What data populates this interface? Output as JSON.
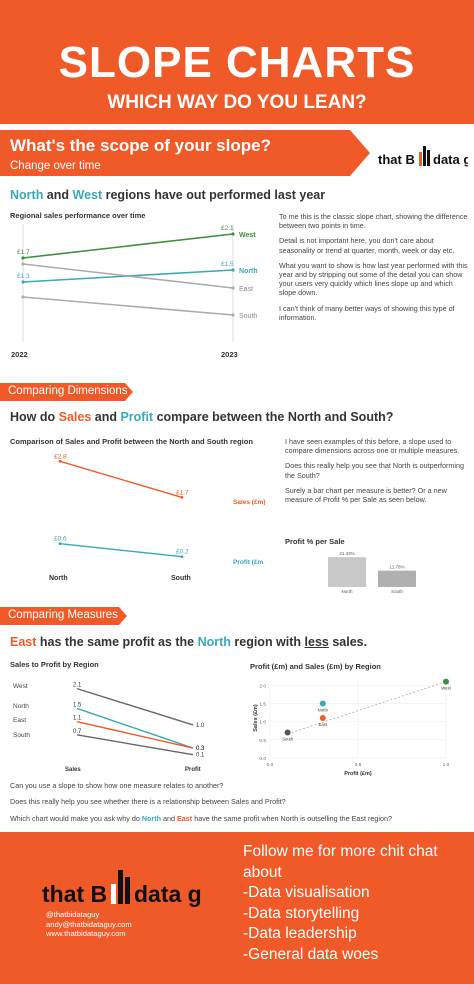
{
  "hero": {
    "title": "SLOPE CHARTS",
    "subtitle": "WHICH WAY DO YOU LEAN?"
  },
  "banner": {
    "title": "What's the scope of your slope?",
    "subtitle": "Change over time"
  },
  "logo": {
    "part1": "that B",
    "part2": "data guy"
  },
  "section1": {
    "heading_a": "North",
    "heading_and": " and ",
    "heading_b": "West",
    "heading_rest": " regions have out performed last year",
    "paragraphs": [
      "To me this is the classic slope chart, showing the difference between two points in time.",
      "Detail is not important here, you don't care about seasonality or trend at quarter, month, week or day etc.",
      "What you want to show is how last year performed with this year and by stripping out some of the detail you can show your users very quickly which lines slope up and which slope down.",
      "I can't think of many better ways of showing this type of information."
    ]
  },
  "section2": {
    "label": "Comparing Dimensions",
    "heading_a": "How do ",
    "heading_sales": "Sales",
    "heading_and": " and ",
    "heading_profit": "Profit",
    "heading_rest": " compare between the North and South?",
    "paragraphs": [
      "I have seen examples of this before, a slope used to compare dimensions across one or multiple measures.",
      "Does this really help you see that North is outperforming the South?",
      "Surely a bar chart per measure is better? Or a new measure of Profit % per Sale as seen below."
    ]
  },
  "section3": {
    "label": "Comparing Measures",
    "heading_east": "East",
    "heading_a": " has the same profit as the ",
    "heading_north": "North",
    "heading_b": " region with ",
    "heading_less": "less",
    "heading_c": " sales.",
    "q1": "Can you use a slope to show how one measure relates to another?",
    "q2": "Does this really help you see whether there is a relationship between Sales and Profit?",
    "q3_a": "Which chart would make you ask why do ",
    "q3_north": "North",
    "q3_and": " and ",
    "q3_east": "East",
    "q3_rest": " have the same profit when North is outselling the East region?"
  },
  "footer": {
    "lines": [
      "Follow me for more chit chat",
      "about",
      "-Data visualisation",
      "-Data storytelling",
      "-Data leadership",
      "-General data woes"
    ],
    "contact": [
      "@thatbidataguy",
      "andy@thatbidataguy.com",
      "www.thatbidataguy.com"
    ]
  },
  "colors": {
    "orange": "#f05a28",
    "teal": "#3aa8b5",
    "green": "#3d8f3d",
    "grey": "#aaaaaa"
  },
  "chart_data": [
    {
      "type": "line",
      "title": "Regional sales performance over time",
      "categories": [
        "2022",
        "2023"
      ],
      "ylim": [
        0.5,
        2.2
      ],
      "series": [
        {
          "name": "West",
          "values": [
            1.7,
            2.1
          ],
          "labels": [
            "£1.7",
            "£2.1"
          ],
          "color": "#3d8f3d"
        },
        {
          "name": "North",
          "values": [
            1.3,
            1.5
          ],
          "labels": [
            "£1.3",
            "£1.5"
          ],
          "color": "#3aa8b5"
        },
        {
          "name": "East",
          "values": [
            1.6,
            1.2
          ],
          "labels": [
            "",
            ""
          ],
          "color": "#aaaaaa"
        },
        {
          "name": "South",
          "values": [
            1.05,
            0.75
          ],
          "labels": [
            "",
            ""
          ],
          "color": "#aaaaaa"
        }
      ]
    },
    {
      "type": "line",
      "title": "Comparison of Sales and Profit between the North and South region",
      "categories": [
        "North",
        "South"
      ],
      "series": [
        {
          "name": "Sales (£m)",
          "values": [
            2.8,
            1.7
          ],
          "labels": [
            "£2.8",
            "£1.7"
          ],
          "color": "#f05a28"
        },
        {
          "name": "Profit (£m",
          "values": [
            0.6,
            0.2
          ],
          "labels": [
            "£0.6",
            "£0.2"
          ],
          "color": "#3aa8b5"
        }
      ]
    },
    {
      "type": "bar",
      "title": "Profit % per Sale",
      "categories": [
        "North",
        "South"
      ],
      "values": [
        21.43,
        11.76
      ],
      "labels": [
        "21.43%",
        "11.76%"
      ],
      "ylim": [
        0,
        25
      ]
    },
    {
      "type": "line",
      "title": "Sales to Profit by Region",
      "categories": [
        "Sales",
        "Profit"
      ],
      "row_labels": [
        "West",
        "North",
        "East",
        "South"
      ],
      "ylim": [
        0,
        2.3
      ],
      "series": [
        {
          "name": "West",
          "values": [
            2.1,
            1.0
          ],
          "labels": [
            "2.1",
            "1.0"
          ],
          "color": "#666666"
        },
        {
          "name": "North",
          "values": [
            1.5,
            0.3
          ],
          "labels": [
            "1.5",
            "0.3"
          ],
          "color": "#3aa8b5"
        },
        {
          "name": "East",
          "values": [
            1.1,
            0.3
          ],
          "labels": [
            "1.1",
            "0.3"
          ],
          "color": "#f05a28"
        },
        {
          "name": "South",
          "values": [
            0.7,
            0.1
          ],
          "labels": [
            "0.7",
            "0.1"
          ],
          "color": "#666666"
        }
      ]
    },
    {
      "type": "scatter",
      "title": "Profit (£m) and Sales (£m) by Region",
      "xlabel": "Profit (£m)",
      "ylabel": "Sales (£m)",
      "xlim": [
        0,
        1.0
      ],
      "ylim": [
        0,
        2.2
      ],
      "xticks": [
        "0.0",
        "0.5",
        "1.0"
      ],
      "yticks": [
        "0.0",
        "0.5",
        "1.0",
        "1.5",
        "2.0"
      ],
      "points": [
        {
          "name": "West",
          "x": 1.0,
          "y": 2.1,
          "color": "#3d8f3d"
        },
        {
          "name": "North",
          "x": 0.3,
          "y": 1.5,
          "color": "#3aa8b5"
        },
        {
          "name": "East",
          "x": 0.3,
          "y": 1.1,
          "color": "#f05a28"
        },
        {
          "name": "South",
          "x": 0.1,
          "y": 0.7,
          "color": "#555555"
        }
      ],
      "trendline": true
    }
  ]
}
